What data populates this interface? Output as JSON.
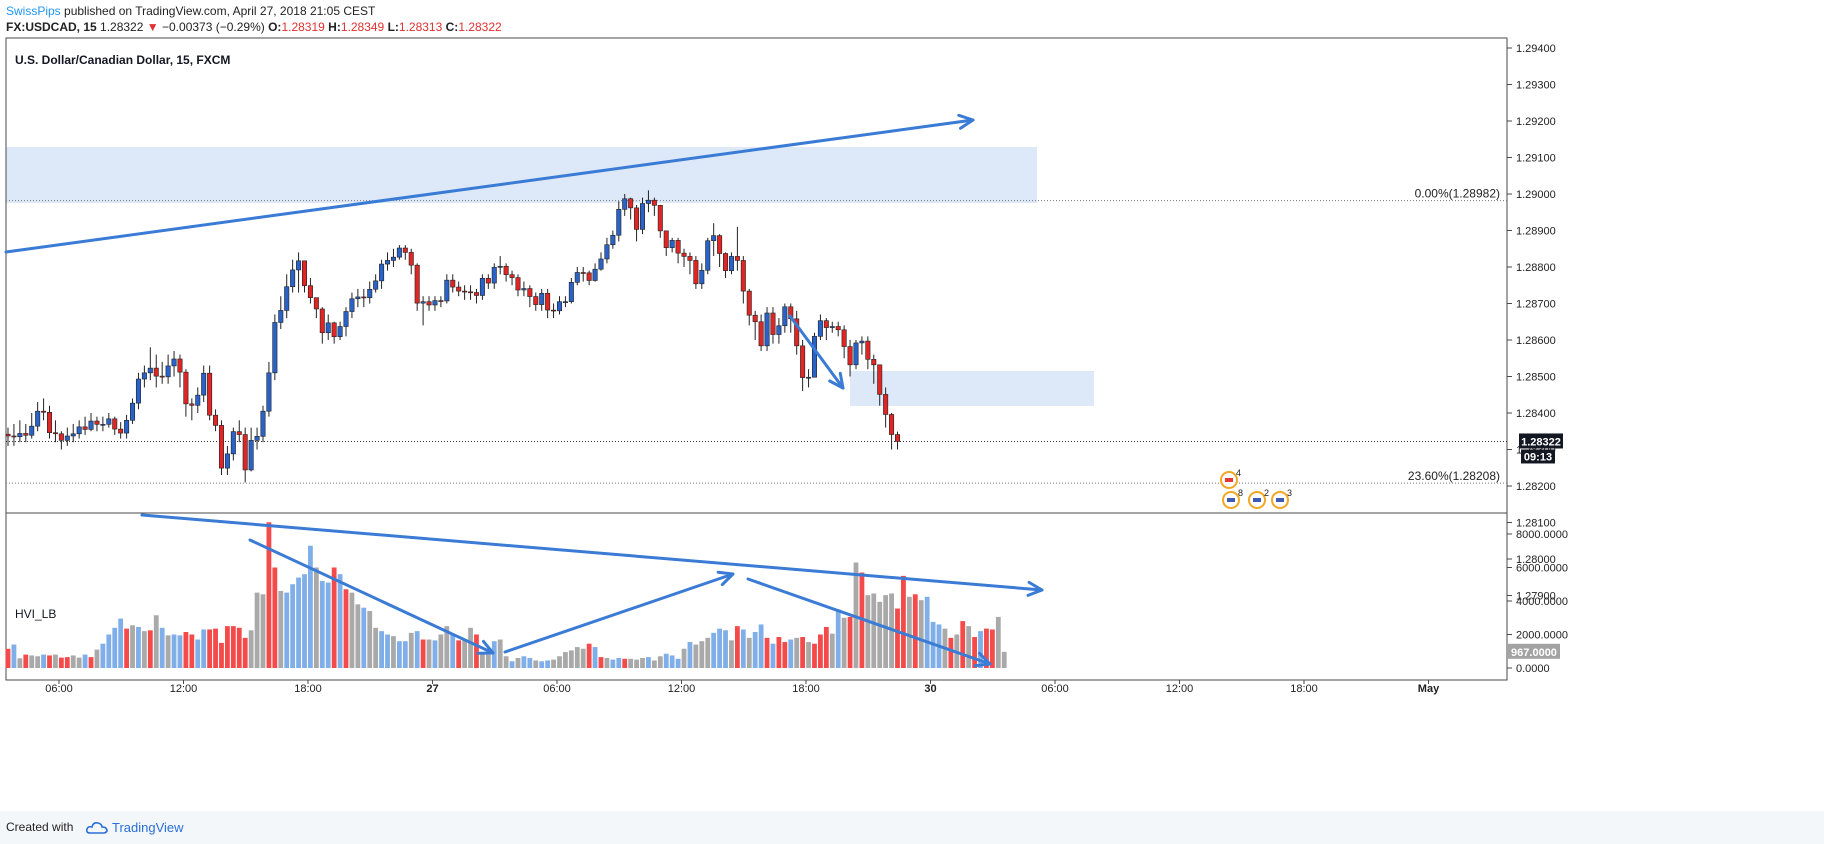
{
  "header": {
    "line1_author": "SwissPips",
    "line1_rest": " published on TradingView.com, April 27, 2018 21:05 CEST",
    "symbol": "FX:USDCAD, 15",
    "last": "1.28322",
    "change": "−0.00373 (−0.29%)",
    "o_label": "O:",
    "o": "1.28319",
    "h_label": "H:",
    "h": "1.28349",
    "l_label": "L:",
    "l": "1.28313",
    "c_label": "C:",
    "c": "1.28322"
  },
  "footer": {
    "created": "Created with",
    "brand": "TradingView"
  },
  "chart_data": [
    {
      "type": "candlestick",
      "title": "U.S. Dollar/Canadian Dollar, 15, FXCM",
      "ylim": [
        1.278,
        1.2945
      ],
      "yticks": [
        "1.29400",
        "1.29300",
        "1.29200",
        "1.29100",
        "1.29000",
        "1.28900",
        "1.28800",
        "1.28700",
        "1.28600",
        "1.28500",
        "1.28400",
        "1.28300",
        "1.28200",
        "1.28100",
        "1.28000",
        "1.27900"
      ],
      "xticks": [
        "06:00",
        "12:00",
        "18:00",
        "27",
        "06:00",
        "12:00",
        "18:00",
        "30",
        "06:00",
        "12:00",
        "18:00",
        "May"
      ],
      "last_price_label": "1.28322",
      "countdown_label": "09:13",
      "fib_levels": [
        {
          "label": "0.00%(1.28982)",
          "value": 1.28982
        },
        {
          "label": "23.60%(1.28208)",
          "value": 1.28208
        }
      ],
      "closes": [
        1.28337,
        1.28335,
        1.28344,
        1.28339,
        1.28364,
        1.28405,
        1.28402,
        1.28346,
        1.28343,
        1.28325,
        1.28337,
        1.28343,
        1.28362,
        1.28355,
        1.28378,
        1.28369,
        1.28369,
        1.28384,
        1.28356,
        1.28345,
        1.2838,
        1.28427,
        1.28493,
        1.2851,
        1.28523,
        1.28501,
        1.28499,
        1.28529,
        1.28548,
        1.28512,
        1.28425,
        1.28421,
        1.28449,
        1.28509,
        1.28394,
        1.28366,
        1.28249,
        1.28288,
        1.28349,
        1.28341,
        1.28244,
        1.28325,
        1.28336,
        1.28405,
        1.2851,
        1.28648,
        1.28681,
        1.28746,
        1.28792,
        1.28817,
        1.28749,
        1.28716,
        1.28685,
        1.2862,
        1.28647,
        1.28609,
        1.28637,
        1.28678,
        1.28713,
        1.28718,
        1.28716,
        1.28739,
        1.28762,
        1.28808,
        1.28818,
        1.28827,
        1.28852,
        1.2884,
        1.28805,
        1.28701,
        1.28705,
        1.28696,
        1.28708,
        1.28707,
        1.28764,
        1.28745,
        1.28734,
        1.28732,
        1.2873,
        1.28722,
        1.28769,
        1.28756,
        1.28799,
        1.28802,
        1.28779,
        1.28771,
        1.28737,
        1.28741,
        1.28719,
        1.28697,
        1.28728,
        1.28682,
        1.2868,
        1.28705,
        1.28705,
        1.28758,
        1.28785,
        1.28784,
        1.28763,
        1.28794,
        1.28822,
        1.28861,
        1.28887,
        1.28958,
        1.28987,
        1.28962,
        1.28903,
        1.28974,
        1.28983,
        1.28969,
        1.28899,
        1.28853,
        1.28873,
        1.28838,
        1.28829,
        1.28818,
        1.28754,
        1.28791,
        1.28872,
        1.28886,
        1.28837,
        1.2879,
        1.28829,
        1.28818,
        1.28734,
        1.28668,
        1.2865,
        1.28584,
        1.28674,
        1.28615,
        1.28639,
        1.28691,
        1.28658,
        1.28584,
        1.28497,
        1.28498,
        1.2861,
        1.28653,
        1.28634,
        1.28637,
        1.28628,
        1.28582,
        1.28532,
        1.28592,
        1.28597,
        1.28547,
        1.28532,
        1.28451,
        1.28396,
        1.28341,
        1.28322
      ],
      "highs": [
        1.2836,
        1.2837,
        1.2838,
        1.2837,
        1.284,
        1.2843,
        1.2844,
        1.2842,
        1.2838,
        1.2835,
        1.2836,
        1.2837,
        1.2838,
        1.2839,
        1.284,
        1.2839,
        1.2839,
        1.284,
        1.2839,
        1.28375,
        1.28395,
        1.2844,
        1.2851,
        1.2853,
        1.2858,
        1.2856,
        1.2854,
        1.2856,
        1.2857,
        1.2856,
        1.2852,
        1.2844,
        1.2847,
        1.2853,
        1.2853,
        1.2841,
        1.2838,
        1.2831,
        1.2836,
        1.2838,
        1.2836,
        1.2836,
        1.2836,
        1.2842,
        1.2854,
        1.2867,
        1.2872,
        1.2878,
        1.2882,
        1.2884,
        1.288,
        1.2877,
        1.2871,
        1.2869,
        1.2867,
        1.2865,
        1.2865,
        1.2869,
        1.2873,
        1.2874,
        1.2874,
        1.2876,
        1.2878,
        1.2882,
        1.2884,
        1.2885,
        1.2886,
        1.2886,
        1.2885,
        1.2881,
        1.2872,
        1.2872,
        1.2872,
        1.2872,
        1.2878,
        1.2878,
        1.2876,
        1.2875,
        1.2875,
        1.2874,
        1.2878,
        1.2878,
        1.2881,
        1.2883,
        1.2881,
        1.2879,
        1.2878,
        1.2876,
        1.2875,
        1.2873,
        1.2874,
        1.2874,
        1.287,
        1.2872,
        1.2872,
        1.2877,
        1.288,
        1.288,
        1.2879,
        1.2881,
        1.2884,
        1.2888,
        1.289,
        1.2898,
        1.29,
        1.2899,
        1.2897,
        1.2899,
        1.2901,
        1.2899,
        1.2897,
        1.289,
        1.2888,
        1.2888,
        1.2885,
        1.2884,
        1.2883,
        1.2881,
        1.2888,
        1.2892,
        1.2889,
        1.2884,
        1.2884,
        1.2891,
        1.2883,
        1.2874,
        1.2868,
        1.2867,
        1.2869,
        1.2869,
        1.2866,
        1.287,
        1.287,
        1.2868,
        1.286,
        1.2852,
        1.2862,
        1.2867,
        1.2866,
        1.2865,
        1.2865,
        1.2864,
        1.286,
        1.286,
        1.2861,
        1.2861,
        1.2856,
        1.2853,
        1.2847,
        1.284,
        1.28349
      ],
      "lows": [
        1.2831,
        1.2831,
        1.2832,
        1.2832,
        1.2833,
        1.2835,
        1.2838,
        1.2833,
        1.2832,
        1.283,
        1.2831,
        1.2832,
        1.2833,
        1.2834,
        1.2835,
        1.2835,
        1.2835,
        1.2836,
        1.2834,
        1.2833,
        1.2833,
        1.2837,
        1.2841,
        1.2847,
        1.2849,
        1.2847,
        1.2848,
        1.2848,
        1.285,
        1.2847,
        1.2839,
        1.2838,
        1.284,
        1.2843,
        1.2838,
        1.2835,
        1.2823,
        1.2823,
        1.2827,
        1.2832,
        1.2821,
        1.2824,
        1.283,
        1.2832,
        1.2839,
        1.2849,
        1.2863,
        1.2866,
        1.2873,
        1.2873,
        1.2873,
        1.287,
        1.2866,
        1.2859,
        1.286,
        1.2859,
        1.286,
        1.2861,
        1.2866,
        1.2869,
        1.2869,
        1.287,
        1.2873,
        1.2874,
        1.2879,
        1.288,
        1.2882,
        1.2882,
        1.2878,
        1.2868,
        1.2864,
        1.2868,
        1.2868,
        1.2869,
        1.287,
        1.2873,
        1.2872,
        1.2871,
        1.2871,
        1.287,
        1.2871,
        1.2874,
        1.2874,
        1.2878,
        1.2876,
        1.2875,
        1.2872,
        1.2872,
        1.2869,
        1.2868,
        1.2868,
        1.2866,
        1.2866,
        1.2867,
        1.2869,
        1.287,
        1.2875,
        1.2876,
        1.2875,
        1.2876,
        1.2879,
        1.2881,
        1.2885,
        1.2887,
        1.2894,
        1.2893,
        1.2887,
        1.2889,
        1.2895,
        1.2894,
        1.2888,
        1.2883,
        1.2884,
        1.2881,
        1.288,
        1.2878,
        1.2874,
        1.2874,
        1.2878,
        1.2883,
        1.288,
        1.2877,
        1.2878,
        1.2879,
        1.287,
        1.2864,
        1.286,
        1.2857,
        1.2857,
        1.2859,
        1.2859,
        1.2862,
        1.2862,
        1.2856,
        1.2846,
        1.2847,
        1.285,
        1.286,
        1.286,
        1.2862,
        1.2861,
        1.2855,
        1.285,
        1.2852,
        1.2856,
        1.2852,
        1.2848,
        1.2842,
        1.2836,
        1.283,
        1.283
      ]
    },
    {
      "type": "bar",
      "title": "HVI_LB",
      "ylim": [
        0,
        8700
      ],
      "yticks": [
        "8000.0000",
        "6000.0000",
        "4000.0000",
        "2000.0000",
        "0.0000"
      ],
      "last_value_label": "967.0000",
      "values": [
        1150,
        1400,
        580,
        800,
        750,
        700,
        800,
        750,
        800,
        620,
        650,
        750,
        620,
        800,
        650,
        1100,
        1450,
        2000,
        2400,
        2950,
        2350,
        2550,
        2450,
        2200,
        2250,
        3150,
        2400,
        1950,
        2000,
        1950,
        2150,
        2000,
        1700,
        2300,
        2300,
        2350,
        1500,
        2500,
        2500,
        2400,
        1800,
        2250,
        4500,
        4400,
        8700,
        6000,
        4600,
        4500,
        5000,
        5400,
        5600,
        7300,
        6000,
        5200,
        5100,
        6000,
        5600,
        4700,
        4500,
        3800,
        3600,
        3400,
        2400,
        2200,
        2000,
        1900,
        1600,
        1600,
        2100,
        2200,
        1700,
        1700,
        1650,
        2000,
        2500,
        2050,
        1650,
        1700,
        2400,
        2000,
        900,
        800,
        1600,
        1700,
        700,
        400,
        600,
        700,
        600,
        450,
        400,
        450,
        500,
        700,
        950,
        1050,
        1250,
        1150,
        1450,
        1250,
        650,
        600,
        500,
        600,
        550,
        550,
        500,
        600,
        650,
        450,
        700,
        850,
        750,
        550,
        1150,
        1550,
        1400,
        1600,
        1800,
        2100,
        2350,
        2250,
        1650,
        2500,
        2300,
        1800,
        2150,
        2600,
        1800,
        1450,
        1850,
        1550,
        1700,
        1800,
        1850,
        1550,
        1450,
        2000,
        2450,
        2050,
        3500,
        3000,
        3050,
        6300,
        5700,
        4350,
        4450,
        3950,
        4350,
        4450,
        3550,
        5500,
        4250,
        4400,
        4050,
        4250,
        2750,
        2600,
        2350,
        1800,
        2000,
        2800,
        2500,
        1850,
        2200,
        2350,
        2300,
        3050,
        967
      ],
      "bar_colors": [
        "#f44a4a",
        "#7faee8",
        "#a9a9a9",
        "#f44a4a",
        "#a9a9a9",
        "#a9a9a9",
        "#7faee8",
        "#f44a4a",
        "#a9a9a9",
        "#f44a4a",
        "#f44a4a",
        "#a9a9a9",
        "#a9a9a9",
        "#7faee8",
        "#f44a4a",
        "#a9a9a9",
        "#7faee8",
        "#7faee8",
        "#7faee8",
        "#7faee8",
        "#f44a4a",
        "#a9a9a9",
        "#7faee8",
        "#a9a9a9",
        "#f44a4a",
        "#a9a9a9",
        "#7faee8",
        "#a9a9a9",
        "#7faee8",
        "#7faee8",
        "#f44a4a",
        "#f44a4a",
        "#7faee8",
        "#7faee8",
        "#f44a4a",
        "#f44a4a",
        "#f44a4a",
        "#f44a4a",
        "#f44a4a",
        "#f44a4a",
        "#f44a4a",
        "#a9a9a9",
        "#a9a9a9",
        "#a9a9a9",
        "#f44a4a",
        "#f44a4a",
        "#a9a9a9",
        "#7faee8",
        "#7faee8",
        "#7faee8",
        "#7faee8",
        "#7faee8",
        "#a9a9a9",
        "#7faee8",
        "#7faee8",
        "#f44a4a",
        "#7faee8",
        "#f44a4a",
        "#a9a9a9",
        "#a9a9a9",
        "#7faee8",
        "#a9a9a9",
        "#a9a9a9",
        "#7faee8",
        "#7faee8",
        "#a9a9a9",
        "#7faee8",
        "#7faee8",
        "#a9a9a9",
        "#7faee8",
        "#f44a4a",
        "#a9a9a9",
        "#7faee8",
        "#a9a9a9",
        "#a9a9a9",
        "#7faee8",
        "#f44a4a",
        "#a9a9a9",
        "#a9a9a9",
        "#f44a4a",
        "#a9a9a9",
        "#a9a9a9",
        "#7faee8",
        "#a9a9a9",
        "#a9a9a9",
        "#7faee8",
        "#a9a9a9",
        "#7faee8",
        "#7faee8",
        "#a9a9a9",
        "#7faee8",
        "#7faee8",
        "#a9a9a9",
        "#a9a9a9",
        "#a9a9a9",
        "#a9a9a9",
        "#a9a9a9",
        "#a9a9a9",
        "#f44a4a",
        "#7faee8",
        "#f44a4a",
        "#a9a9a9",
        "#7faee8",
        "#7faee8",
        "#f44a4a",
        "#a9a9a9",
        "#a9a9a9",
        "#a9a9a9",
        "#7faee8",
        "#a9a9a9",
        "#a9a9a9",
        "#7faee8",
        "#7faee8",
        "#7faee8",
        "#a9a9a9",
        "#7faee8",
        "#a9a9a9",
        "#a9a9a9",
        "#a9a9a9",
        "#7faee8",
        "#7faee8",
        "#7faee8",
        "#a9a9a9",
        "#f44a4a",
        "#7faee8",
        "#a9a9a9",
        "#7faee8",
        "#7faee8",
        "#f44a4a",
        "#7faee8",
        "#f44a4a",
        "#f44a4a",
        "#7faee8",
        "#a9a9a9",
        "#f44a4a",
        "#a9a9a9",
        "#f44a4a",
        "#f44a4a",
        "#f44a4a",
        "#a9a9a9",
        "#7faee8",
        "#a9a9a9",
        "#f44a4a",
        "#a9a9a9",
        "#f44a4a",
        "#a9a9a9",
        "#a9a9a9",
        "#a9a9a9",
        "#a9a9a9",
        "#a9a9a9",
        "#f44a4a",
        "#f44a4a",
        "#a9a9a9",
        "#f44a4a",
        "#a9a9a9",
        "#7faee8",
        "#7faee8",
        "#7faee8",
        "#a9a9a9",
        "#f44a4a",
        "#a9a9a9",
        "#f44a4a",
        "#a9a9a9",
        "#f44a4a",
        "#7faee8",
        "#f44a4a",
        "#f44a4a",
        "#a9a9a9",
        "#a9a9a9",
        "#f44a4a",
        "#f44a4a",
        "#a9a9a9"
      ]
    }
  ],
  "event_badges": [
    {
      "label": "4",
      "flag": "CA"
    },
    {
      "label": "8",
      "flag": "US"
    },
    {
      "label": "2",
      "flag": "US"
    },
    {
      "label": "3",
      "flag": "US"
    }
  ],
  "colors": {
    "up": "#2962c8",
    "down": "#e02525",
    "drawing": "#3a7bd5",
    "zone": "#dde8f8",
    "price_label_bg": "#131722"
  }
}
